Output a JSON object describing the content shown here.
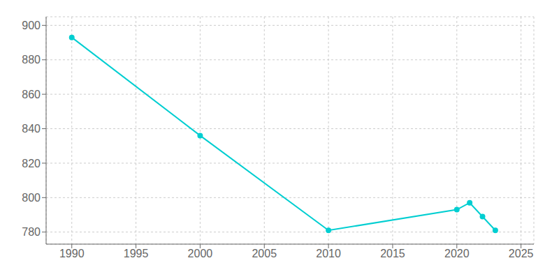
{
  "chart_data": {
    "type": "line",
    "x": [
      1990,
      2000,
      2010,
      2020,
      2021,
      2022,
      2023
    ],
    "values": [
      893,
      836,
      781,
      793,
      797,
      789,
      781
    ],
    "color": "#00CED1",
    "xlim": [
      1988,
      2026
    ],
    "ylim": [
      773,
      905
    ],
    "xticks": [
      1990,
      1995,
      2000,
      2005,
      2010,
      2015,
      2020,
      2025
    ],
    "yticks": [
      780,
      800,
      820,
      840,
      860,
      880,
      900
    ],
    "grid": true,
    "marker": "circle"
  }
}
